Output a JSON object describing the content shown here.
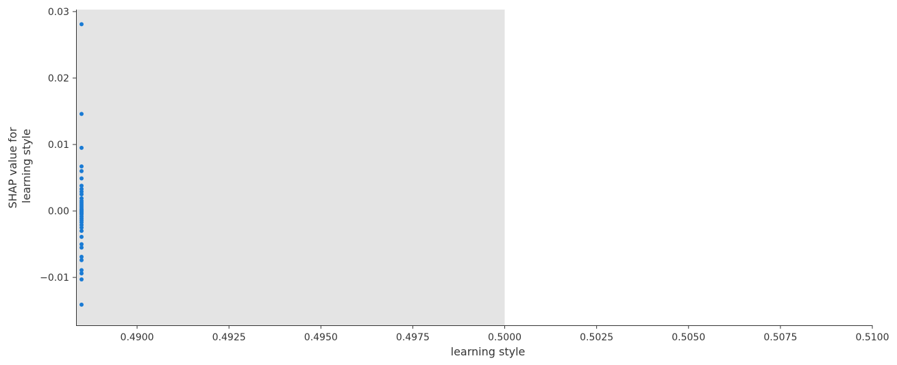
{
  "chart_data": {
    "type": "scatter",
    "title": "",
    "xlabel": "learning style",
    "ylabel_lines": [
      "SHAP value for",
      "learning style"
    ],
    "xlim": [
      0.48834,
      0.51
    ],
    "ylim": [
      -0.0172,
      0.0303
    ],
    "grid": false,
    "background_band": {
      "x_from": 0.48834,
      "x_to": 0.5,
      "color": "#e4e4e4"
    },
    "point_color": "#1a7bd4",
    "x_ticks": [
      0.49,
      0.4925,
      0.495,
      0.4975,
      0.5,
      0.5025,
      0.505,
      0.5075,
      0.51
    ],
    "x_tick_labels": [
      "0.4900",
      "0.4925",
      "0.4950",
      "0.4975",
      "0.5000",
      "0.5025",
      "0.5050",
      "0.5075",
      "0.5100"
    ],
    "y_ticks": [
      -0.01,
      0.0,
      0.01,
      0.02,
      0.03
    ],
    "y_tick_labels": [
      "−0.01",
      "0.00",
      "0.01",
      "0.02",
      "0.03"
    ],
    "points": [
      {
        "x": 0.48834,
        "y": 0.0281
      },
      {
        "x": 0.48834,
        "y": 0.0146
      },
      {
        "x": 0.48834,
        "y": 0.0095
      },
      {
        "x": 0.48834,
        "y": 0.0067
      },
      {
        "x": 0.48834,
        "y": 0.006
      },
      {
        "x": 0.48834,
        "y": 0.0049
      },
      {
        "x": 0.48834,
        "y": 0.0038
      },
      {
        "x": 0.48834,
        "y": 0.0033
      },
      {
        "x": 0.48834,
        "y": 0.0029
      },
      {
        "x": 0.48834,
        "y": 0.0025
      },
      {
        "x": 0.48834,
        "y": 0.0019
      },
      {
        "x": 0.48834,
        "y": 0.0015
      },
      {
        "x": 0.48834,
        "y": 0.0012
      },
      {
        "x": 0.48834,
        "y": 0.0009
      },
      {
        "x": 0.48834,
        "y": 0.0006
      },
      {
        "x": 0.48834,
        "y": 0.0003
      },
      {
        "x": 0.48834,
        "y": 0.0001
      },
      {
        "x": 0.48834,
        "y": -0.0001
      },
      {
        "x": 0.48834,
        "y": -0.0003
      },
      {
        "x": 0.48834,
        "y": -0.0005
      },
      {
        "x": 0.48834,
        "y": -0.0008
      },
      {
        "x": 0.48834,
        "y": -0.0011
      },
      {
        "x": 0.48834,
        "y": -0.0014
      },
      {
        "x": 0.48834,
        "y": -0.0017
      },
      {
        "x": 0.48834,
        "y": -0.0021
      },
      {
        "x": 0.48834,
        "y": -0.0025
      },
      {
        "x": 0.48834,
        "y": -0.003
      },
      {
        "x": 0.48834,
        "y": -0.0039
      },
      {
        "x": 0.48834,
        "y": -0.005
      },
      {
        "x": 0.48834,
        "y": -0.0055
      },
      {
        "x": 0.48834,
        "y": -0.0069
      },
      {
        "x": 0.48834,
        "y": -0.0074
      },
      {
        "x": 0.48834,
        "y": -0.0089
      },
      {
        "x": 0.48834,
        "y": -0.0094
      },
      {
        "x": 0.48834,
        "y": -0.0103
      },
      {
        "x": 0.48834,
        "y": -0.0141
      }
    ]
  }
}
